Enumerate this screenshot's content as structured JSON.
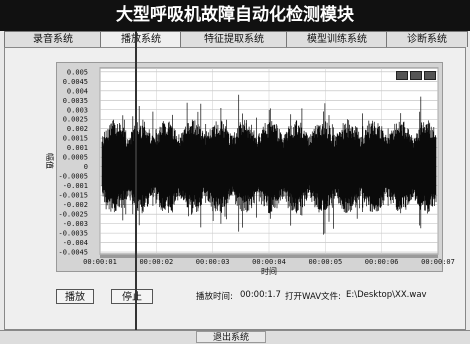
{
  "window": {
    "title": "大型呼吸机故障自动化检测模块"
  },
  "tabs": [
    {
      "label": "录音系统",
      "active": false
    },
    {
      "label": "播放系统",
      "active": true
    },
    {
      "label": "特征提取系统",
      "active": false
    },
    {
      "label": "模型训练系统",
      "active": false
    },
    {
      "label": "诊断系统",
      "active": false
    }
  ],
  "chart_data": {
    "type": "line",
    "title": "",
    "xlabel": "时间",
    "ylabel": "幅值",
    "x_ticks": [
      "00:00:01",
      "00:00:02",
      "00:00:03",
      "00:00:04",
      "00:00:05",
      "00:00:06",
      "00:00:07"
    ],
    "y_ticks": [
      "0.005",
      "0.0045",
      "0.004",
      "0.0035",
      "0.003",
      "0.0025",
      "0.002",
      "0.0015",
      "0.001",
      "0.0005",
      "0",
      "-0.0005",
      "-0.001",
      "-0.0015",
      "-0.002",
      "-0.0025",
      "-0.003",
      "-0.0035",
      "-0.004",
      "-0.0045"
    ],
    "ylim": [
      -0.0046,
      0.0052
    ],
    "xlim": [
      1,
      7
    ],
    "grid": true,
    "signal": "dense audio waveform, amplitude roughly ±0.002 with peaks to ±0.004"
  },
  "controls": {
    "play_label": "播放",
    "stop_label": "停止",
    "play_time_label": "播放时间:",
    "play_time_value": "00:00:1.7",
    "open_file_label": "打开WAV文件:",
    "open_file_value": "E:\\Desktop\\XX.wav",
    "exit_label": "退出系统"
  }
}
